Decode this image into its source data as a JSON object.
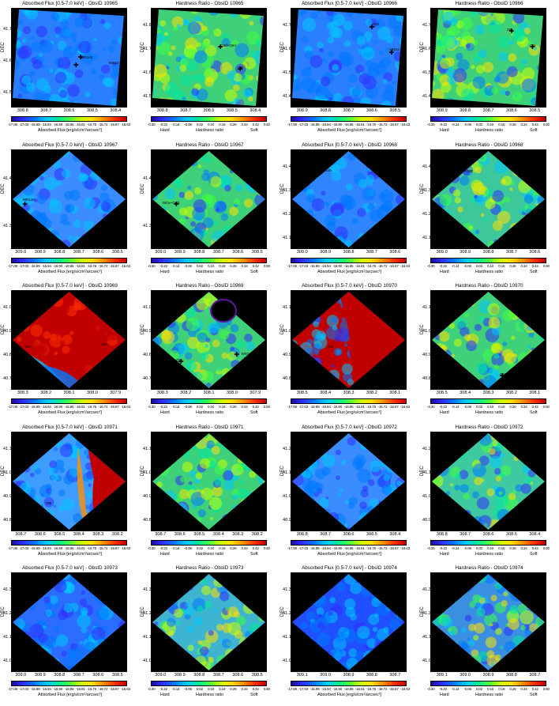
{
  "panels": [
    {
      "title": "Absorbed Flux [0.5-7.0 keV] - ObsID 10965",
      "kind": "flux",
      "yticks": [
        "41.7",
        "41.6",
        "41.5"
      ],
      "xticks": [
        "308.8",
        "308.7",
        "308.6",
        "308.5",
        "308.4"
      ],
      "base": "#2a7fff",
      "angle": 0,
      "labels": [
        {
          "t": "WR145",
          "x": 0.6,
          "y": 0.48
        },
        {
          "t": "S5810",
          "x": 0.84,
          "y": 0.53
        }
      ],
      "stars": [
        {
          "x": 0.6,
          "y": 0.5
        },
        {
          "x": 0.56,
          "y": 0.58
        }
      ]
    },
    {
      "title": "Hardness Ratio - ObsID 10965",
      "kind": "hr",
      "yticks": [
        "41.8",
        "41.7",
        "41.6",
        "41.5"
      ],
      "xticks": [
        "308.8",
        "308.7",
        "308.6",
        "308.5",
        "308.4"
      ],
      "base": "#3fd07a",
      "angle": 0,
      "labels": [
        {
          "t": "O3If+O6V",
          "x": 0.6,
          "y": 0.36
        },
        {
          "t": "O5I",
          "x": 0.75,
          "y": 0.58
        }
      ],
      "stars": [
        {
          "x": 0.6,
          "y": 0.4
        },
        {
          "x": 0.77,
          "y": 0.62
        }
      ]
    },
    {
      "title": "Absorbed Flux [0.5-7.0 keV] - ObsID 10966",
      "kind": "flux",
      "yticks": [
        "41.7",
        "41.6",
        "41.5",
        "41.4"
      ],
      "xticks": [
        "308.9",
        "308.8",
        "308.7",
        "308.6",
        "308.5"
      ],
      "base": "#2a7fff",
      "angle": 0,
      "labels": [
        {
          "t": "SO3",
          "x": 0.7,
          "y": 0.14
        },
        {
          "t": "S5810",
          "x": 0.85,
          "y": 0.4
        }
      ],
      "stars": [
        {
          "x": 0.7,
          "y": 0.2
        },
        {
          "x": 0.87,
          "y": 0.45
        }
      ]
    },
    {
      "title": "Hardness Ratio - ObsID 10966",
      "kind": "hr",
      "yticks": [
        "41.7",
        "41.6",
        "41.5",
        "41.4"
      ],
      "xticks": [
        "308.9",
        "308.8",
        "308.7",
        "308.6",
        "308.5"
      ],
      "base": "#3fd07a",
      "angle": 0,
      "labels": [
        {
          "t": "O5I",
          "x": 0.66,
          "y": 0.2
        },
        {
          "t": "O5I",
          "x": 0.86,
          "y": 0.36
        }
      ],
      "stars": [
        {
          "x": 0.7,
          "y": 0.24
        },
        {
          "x": 0.88,
          "y": 0.4
        }
      ]
    },
    {
      "title": "Absorbed Flux [0.5-7.0 keV] - ObsID 10967",
      "kind": "flux",
      "yticks": [
        "41.4",
        "41.3"
      ],
      "xticks": [
        "309.0",
        "308.9",
        "308.8",
        "308.7",
        "308.6",
        "308.5"
      ],
      "base": "#3a8cff",
      "angle": 45,
      "labels": [
        {
          "t": "WR146",
          "x": 0.1,
          "y": 0.49
        }
      ],
      "stars": [
        {
          "x": 0.12,
          "y": 0.56
        }
      ]
    },
    {
      "title": "Hardness Ratio - ObsID 10967",
      "kind": "hr",
      "yticks": [
        "41.4",
        "41.3"
      ],
      "xticks": [
        "309.0",
        "308.9",
        "308.8",
        "308.7",
        "308.6",
        "308.5"
      ],
      "base": "#3fd07a",
      "angle": 45,
      "labels": [
        {
          "t": "WC6+O8B",
          "x": 0.1,
          "y": 0.52
        }
      ],
      "stars": [
        {
          "x": 0.22,
          "y": 0.56
        }
      ]
    },
    {
      "title": "Absorbed Flux [0.5-7.0 keV] - ObsID 10968",
      "kind": "flux",
      "yticks": [
        "41.4",
        "41.3",
        "41.2",
        "41.1"
      ],
      "xticks": [
        "309.0",
        "308.9",
        "308.8",
        "308.7",
        "308.6"
      ],
      "base": "#2f84ff",
      "angle": 45,
      "labels": [
        {
          "t": "WR146",
          "x": 0.25,
          "y": 0.19
        }
      ],
      "stars": [
        {
          "x": 0.28,
          "y": 0.22
        }
      ]
    },
    {
      "title": "Hardness Ratio - ObsID 10968",
      "kind": "hr",
      "yticks": [
        "41.4",
        "41.3",
        "41.2",
        "41.1"
      ],
      "xticks": [
        "309.0",
        "308.9",
        "308.8",
        "308.7",
        "308.6"
      ],
      "base": "#3cc89a",
      "angle": 45,
      "labels": [
        {
          "t": "WC6+O8B",
          "x": 0.22,
          "y": 0.2
        }
      ],
      "stars": [
        {
          "x": 0.24,
          "y": 0.24
        }
      ]
    },
    {
      "title": "Absorbed Flux [0.5-7.0 keV] - ObsID 10969",
      "kind": "hot",
      "yticks": [
        "41.0",
        "40.9",
        "40.8",
        "40.7"
      ],
      "xticks": [
        "308.3",
        "308.2",
        "308.1",
        "308.0",
        "307.9"
      ],
      "base": "#c00000",
      "angle": 45,
      "labels": [
        {
          "t": "O8I",
          "x": 0.12,
          "y": 0.55
        },
        {
          "t": "WR",
          "x": 0.78,
          "y": 0.52
        }
      ],
      "stars": []
    },
    {
      "title": "Hardness Ratio - ObsID 10969",
      "kind": "hr",
      "yticks": [
        "41.0",
        "40.9",
        "40.8",
        "40.7"
      ],
      "xticks": [
        "308.3",
        "308.2",
        "308.1",
        "308.0",
        "307.9"
      ],
      "base": "#3fd07a",
      "angle": 45,
      "labels": [
        {
          "t": "O8I",
          "x": 0.22,
          "y": 0.68
        },
        {
          "t": "WN7o/CE+O7?",
          "x": 0.78,
          "y": 0.62
        }
      ],
      "stars": [
        {
          "x": 0.26,
          "y": 0.72
        },
        {
          "x": 0.74,
          "y": 0.65
        }
      ]
    },
    {
      "title": "Absorbed Flux [0.5-7.0 keV] - ObsID 10970",
      "kind": "mixed",
      "yticks": [
        "41.1",
        "41.0",
        "40.9",
        "40.8"
      ],
      "xticks": [
        "308.5",
        "308.4",
        "308.3",
        "308.2",
        "308.1"
      ],
      "base": "#c00000",
      "angle": 45,
      "labels": [
        {
          "t": "O5I",
          "x": 0.32,
          "y": 0.55
        }
      ],
      "stars": []
    },
    {
      "title": "Hardness Ratio - ObsID 10970",
      "kind": "hr",
      "yticks": [
        "41.1",
        "41.0",
        "40.9",
        "40.8"
      ],
      "xticks": [
        "308.5",
        "308.4",
        "308.3",
        "308.2",
        "308.1"
      ],
      "base": "#3fd07a",
      "angle": 45,
      "labels": [
        {
          "t": "O5I",
          "x": 0.6,
          "y": 0.82
        }
      ],
      "stars": [
        {
          "x": 0.62,
          "y": 0.86
        }
      ]
    },
    {
      "title": "Absorbed Flux [0.5-7.0 keV] - ObsID 10971",
      "kind": "mixed2",
      "yticks": [
        "41.1",
        "41.0",
        "40.9",
        "40.8"
      ],
      "xticks": [
        "308.7",
        "308.6",
        "308.5",
        "308.4",
        "308.3",
        "308.2"
      ],
      "base": "#3f9cff",
      "angle": 45,
      "labels": [
        {
          "t": "O5I",
          "x": 0.3,
          "y": 0.7
        }
      ],
      "stars": []
    },
    {
      "title": "Hardness Ratio - ObsID 10971",
      "kind": "hr",
      "yticks": [
        "41.1",
        "41.0",
        "40.9",
        "40.8"
      ],
      "xticks": [
        "308.7",
        "308.6",
        "308.5",
        "308.4",
        "308.3",
        "308.2"
      ],
      "base": "#3fd07a",
      "angle": 45,
      "labels": [],
      "stars": []
    },
    {
      "title": "Absorbed Flux [0.5-7.0 keV] - ObsID 10972",
      "kind": "flux",
      "yticks": [
        "41.2",
        "41.1",
        "41.0",
        "40.9"
      ],
      "xticks": [
        "308.8",
        "308.7",
        "308.6",
        "308.5",
        "308.4"
      ],
      "base": "#3a8cff",
      "angle": 45,
      "labels": [],
      "stars": []
    },
    {
      "title": "Hardness Ratio - ObsID 10972",
      "kind": "hr",
      "yticks": [
        "41.2",
        "41.1",
        "41.0",
        "40.9"
      ],
      "xticks": [
        "308.8",
        "308.7",
        "308.6",
        "308.5",
        "308.4"
      ],
      "base": "#3fc9a0",
      "angle": 45,
      "labels": [],
      "stars": []
    },
    {
      "title": "Absorbed Flux [0.5-7.0 keV] - ObsID 10973",
      "kind": "flux",
      "yticks": [
        "41.3",
        "41.2",
        "41.1",
        "41.0"
      ],
      "xticks": [
        "309.0",
        "308.9",
        "308.8",
        "308.7",
        "308.6",
        "308.5"
      ],
      "base": "#2a6dff",
      "angle": 45,
      "labels": [],
      "stars": []
    },
    {
      "title": "Hardness Ratio - ObsID 10973",
      "kind": "hr",
      "yticks": [
        "41.3",
        "41.2",
        "41.1",
        "41.0"
      ],
      "xticks": [
        "309.0",
        "308.9",
        "308.8",
        "308.7",
        "308.6",
        "308.5"
      ],
      "base": "#3fb4d0",
      "angle": 45,
      "labels": [],
      "stars": []
    },
    {
      "title": "Absorbed Flux [0.5-7.0 keV] - ObsID 10974",
      "kind": "flux",
      "yticks": [
        "41.3",
        "41.2",
        "41.1",
        "41.0"
      ],
      "xticks": [
        "309.1",
        "309.0",
        "308.9",
        "308.8",
        "308.7"
      ],
      "base": "#1f4fff",
      "angle": 45,
      "labels": [],
      "stars": []
    },
    {
      "title": "Hardness Ratio - ObsID 10974",
      "kind": "hr",
      "yticks": [
        "41.3",
        "41.2",
        "41.1",
        "41.0"
      ],
      "xticks": [
        "309.1",
        "309.0",
        "308.9",
        "308.8",
        "308.7"
      ],
      "base": "#3a8fe0",
      "angle": 45,
      "labels": [],
      "stars": []
    }
  ],
  "axis": {
    "ylabel": "DEC"
  },
  "flux_colorbar": {
    "ticks": [
      "-17.08",
      "-17.03",
      "-16.99",
      "-16.94",
      "-16.90",
      "-16.85",
      "-16.81",
      "-16.76",
      "-16.72",
      "-16.67",
      "-16.63"
    ],
    "label": "Absorbed Flux [erg/s/cm²/arcsec²]"
  },
  "hr_colorbar": {
    "ticks": [
      "-0.30",
      "-0.22",
      "-0.14",
      "-0.06",
      "0.02",
      "0.10",
      "0.18",
      "0.26",
      "0.34",
      "0.42",
      "0.50"
    ],
    "label": "Hardness ratio",
    "hard": "Hard",
    "soft": "Soft"
  },
  "colormap": [
    "#1a0aa0",
    "#3030ff",
    "#0078ff",
    "#00c8ff",
    "#00e8a0",
    "#40ff40",
    "#c8ff00",
    "#ffe000",
    "#ff9000",
    "#ff3000",
    "#c00000"
  ]
}
